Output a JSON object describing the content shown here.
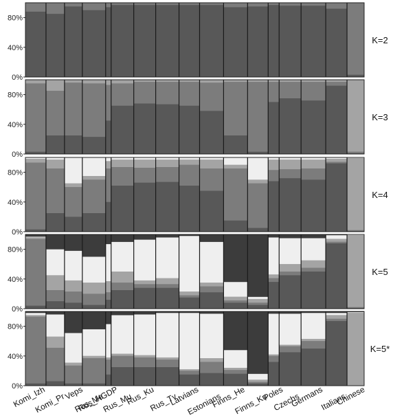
{
  "chart_data": {
    "type": "stacked-bar",
    "description_note": "",
    "populations": [
      "Komi_Izh",
      "Komi_Pr",
      "Veps",
      "Rus_Me",
      "Rus_HGDP",
      "Rus_Mu",
      "Rus_Ku",
      "Rus_Tv",
      "Latvians",
      "Estonians",
      "Finns_He",
      "Finns_Ku",
      "Poles",
      "Czechs",
      "Germans",
      "Italians",
      "Chinese"
    ],
    "y_ticks": [
      "0%",
      "40%",
      "80%"
    ],
    "ylim": [
      0,
      100
    ],
    "colors": [
      "#585858",
      "#7c7c7c",
      "#a4a4a4",
      "#efefef",
      "#3c3c3c"
    ],
    "panels": [
      {
        "label": "K=2",
        "values": [
          [
            88,
            12
          ],
          [
            85,
            15
          ],
          [
            95,
            5
          ],
          [
            90,
            10
          ],
          [
            94,
            6
          ],
          [
            97,
            3
          ],
          [
            97,
            3
          ],
          [
            97,
            3
          ],
          [
            97,
            3
          ],
          [
            97,
            3
          ],
          [
            94,
            6
          ],
          [
            95,
            5
          ],
          [
            97,
            3
          ],
          [
            96,
            4
          ],
          [
            96,
            4
          ],
          [
            92,
            8
          ],
          [
            3,
            97
          ]
        ]
      },
      {
        "label": "K=3",
        "values": [
          [
            3,
            92,
            5
          ],
          [
            25,
            60,
            15
          ],
          [
            25,
            71,
            4
          ],
          [
            23,
            72,
            5
          ],
          [
            45,
            48,
            7
          ],
          [
            65,
            30,
            5
          ],
          [
            68,
            29,
            3
          ],
          [
            67,
            30,
            3
          ],
          [
            65,
            32,
            3
          ],
          [
            58,
            38,
            4
          ],
          [
            25,
            72,
            3
          ],
          [
            3,
            94,
            3
          ],
          [
            70,
            27,
            3
          ],
          [
            75,
            22,
            3
          ],
          [
            72,
            25,
            3
          ],
          [
            92,
            5,
            3
          ],
          [
            1,
            2,
            97
          ]
        ]
      },
      {
        "label": "K=4",
        "values": [
          [
            3,
            90,
            5,
            2
          ],
          [
            25,
            60,
            12,
            3
          ],
          [
            20,
            40,
            5,
            35
          ],
          [
            25,
            45,
            5,
            25
          ],
          [
            40,
            45,
            10,
            5
          ],
          [
            62,
            25,
            10,
            3
          ],
          [
            66,
            20,
            11,
            3
          ],
          [
            67,
            20,
            10,
            3
          ],
          [
            62,
            28,
            7,
            3
          ],
          [
            55,
            30,
            12,
            3
          ],
          [
            15,
            70,
            5,
            10
          ],
          [
            5,
            60,
            5,
            30
          ],
          [
            68,
            15,
            14,
            3
          ],
          [
            72,
            12,
            13,
            3
          ],
          [
            70,
            15,
            12,
            3
          ],
          [
            92,
            2,
            4,
            2
          ],
          [
            1,
            1,
            97,
            1
          ]
        ]
      },
      {
        "label": "K=5",
        "values": [
          [
            4,
            90,
            2,
            1,
            3
          ],
          [
            10,
            15,
            20,
            35,
            20
          ],
          [
            8,
            15,
            15,
            40,
            22
          ],
          [
            5,
            15,
            15,
            35,
            30
          ],
          [
            12,
            10,
            15,
            50,
            13
          ],
          [
            25,
            10,
            15,
            40,
            10
          ],
          [
            28,
            5,
            5,
            55,
            7
          ],
          [
            28,
            5,
            8,
            55,
            4
          ],
          [
            15,
            3,
            5,
            75,
            2
          ],
          [
            22,
            8,
            5,
            55,
            10
          ],
          [
            8,
            3,
            5,
            20,
            64
          ],
          [
            5,
            3,
            5,
            3,
            84
          ],
          [
            36,
            5,
            5,
            50,
            4
          ],
          [
            45,
            5,
            10,
            35,
            5
          ],
          [
            50,
            5,
            10,
            30,
            5
          ],
          [
            88,
            2,
            4,
            5,
            1
          ],
          [
            1,
            1,
            97,
            1,
            0
          ]
        ]
      },
      {
        "label": "K=5*",
        "values": [
          [
            3,
            90,
            2,
            3,
            2
          ],
          [
            6,
            45,
            15,
            30,
            4
          ],
          [
            3,
            24,
            4,
            40,
            29
          ],
          [
            3,
            34,
            3,
            36,
            24
          ],
          [
            15,
            20,
            3,
            45,
            17
          ],
          [
            25,
            15,
            3,
            52,
            5
          ],
          [
            25,
            13,
            3,
            55,
            4
          ],
          [
            25,
            10,
            3,
            60,
            2
          ],
          [
            15,
            5,
            2,
            76,
            2
          ],
          [
            17,
            15,
            5,
            60,
            3
          ],
          [
            16,
            5,
            3,
            24,
            52
          ],
          [
            3,
            2,
            3,
            8,
            84
          ],
          [
            32,
            8,
            2,
            55,
            3
          ],
          [
            45,
            8,
            2,
            42,
            3
          ],
          [
            50,
            10,
            3,
            35,
            2
          ],
          [
            87,
            3,
            5,
            3,
            2
          ],
          [
            0,
            0,
            98,
            1,
            1
          ]
        ]
      }
    ]
  }
}
